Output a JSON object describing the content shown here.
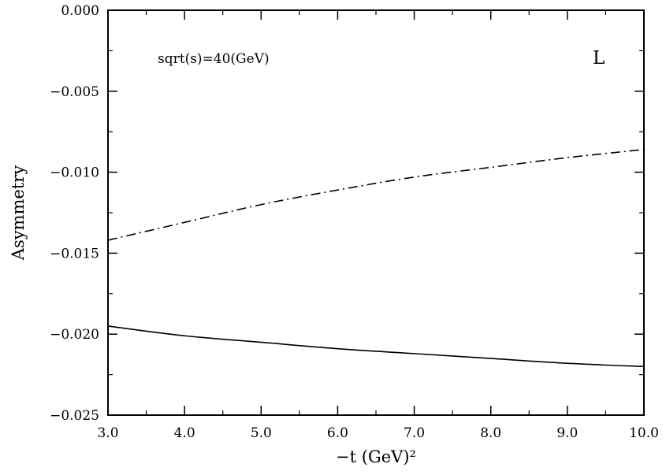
{
  "chart_data": {
    "type": "line",
    "xlabel": "−t (GeV)²",
    "ylabel": "Asymmetry",
    "annotation": "sqrt(s)=40(GeV)",
    "panel_label": "L",
    "xlim": [
      3.0,
      10.0
    ],
    "ylim": [
      -0.025,
      0.0
    ],
    "x_ticks": [
      3.0,
      4.0,
      5.0,
      6.0,
      7.0,
      8.0,
      9.0,
      10.0
    ],
    "x_tick_labels": [
      "3.0",
      "4.0",
      "5.0",
      "6.0",
      "7.0",
      "8.0",
      "9.0",
      "10.0"
    ],
    "y_ticks": [
      0.0,
      -0.005,
      -0.01,
      -0.015,
      -0.02,
      -0.025
    ],
    "y_tick_labels": [
      "0.000",
      "−0.005",
      "−0.010",
      "−0.015",
      "−0.020",
      "−0.025"
    ],
    "grid": false,
    "series": [
      {
        "style": "dash-dot",
        "color": "#000000",
        "x": [
          3.0,
          4.0,
          5.0,
          6.0,
          7.0,
          8.0,
          9.0,
          10.0
        ],
        "y": [
          -0.0142,
          -0.0131,
          -0.012,
          -0.0111,
          -0.0103,
          -0.0097,
          -0.0091,
          -0.0086
        ]
      },
      {
        "style": "solid",
        "color": "#000000",
        "x": [
          3.0,
          4.0,
          5.0,
          6.0,
          7.0,
          8.0,
          9.0,
          10.0
        ],
        "y": [
          -0.0195,
          -0.0201,
          -0.0205,
          -0.0209,
          -0.0212,
          -0.0215,
          -0.0218,
          -0.022
        ]
      }
    ]
  }
}
